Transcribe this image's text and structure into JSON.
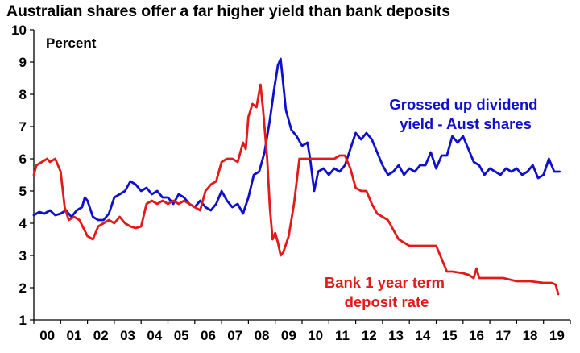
{
  "chart_data": {
    "type": "line",
    "title": "Australian shares offer a far higher yield than bank deposits",
    "ylabel": "Percent",
    "xlabel": "",
    "ylim": [
      1,
      10
    ],
    "xlim": [
      2000,
      2019.6
    ],
    "grid": false,
    "x_tick_labels": [
      "00",
      "01",
      "02",
      "03",
      "04",
      "05",
      "06",
      "07",
      "08",
      "09",
      "10",
      "11",
      "12",
      "13",
      "14",
      "15",
      "16",
      "17",
      "18",
      "19"
    ],
    "y_tick_labels": [
      "1",
      "2",
      "3",
      "4",
      "5",
      "6",
      "7",
      "8",
      "9",
      "10"
    ],
    "series": [
      {
        "name": "Grossed up dividend yield - Aust shares",
        "color": "#1010cc",
        "label_lines": [
          "Grossed up dividend",
          "yield - Aust shares"
        ],
        "points": [
          [
            2000.0,
            4.25
          ],
          [
            2000.2,
            4.35
          ],
          [
            2000.4,
            4.3
          ],
          [
            2000.6,
            4.4
          ],
          [
            2000.8,
            4.25
          ],
          [
            2001.0,
            4.3
          ],
          [
            2001.2,
            4.4
          ],
          [
            2001.4,
            4.2
          ],
          [
            2001.6,
            4.4
          ],
          [
            2001.8,
            4.5
          ],
          [
            2001.9,
            4.8
          ],
          [
            2002.0,
            4.7
          ],
          [
            2002.2,
            4.2
          ],
          [
            2002.4,
            4.1
          ],
          [
            2002.6,
            4.1
          ],
          [
            2002.8,
            4.3
          ],
          [
            2003.0,
            4.8
          ],
          [
            2003.2,
            4.9
          ],
          [
            2003.4,
            5.0
          ],
          [
            2003.6,
            5.3
          ],
          [
            2003.8,
            5.2
          ],
          [
            2004.0,
            5.0
          ],
          [
            2004.2,
            5.1
          ],
          [
            2004.4,
            4.9
          ],
          [
            2004.6,
            5.0
          ],
          [
            2004.8,
            4.8
          ],
          [
            2005.0,
            4.8
          ],
          [
            2005.2,
            4.6
          ],
          [
            2005.4,
            4.9
          ],
          [
            2005.6,
            4.8
          ],
          [
            2005.8,
            4.6
          ],
          [
            2006.0,
            4.5
          ],
          [
            2006.2,
            4.7
          ],
          [
            2006.4,
            4.5
          ],
          [
            2006.6,
            4.4
          ],
          [
            2006.8,
            4.6
          ],
          [
            2007.0,
            5.0
          ],
          [
            2007.2,
            4.7
          ],
          [
            2007.4,
            4.5
          ],
          [
            2007.6,
            4.6
          ],
          [
            2007.8,
            4.3
          ],
          [
            2008.0,
            4.8
          ],
          [
            2008.2,
            5.5
          ],
          [
            2008.4,
            5.6
          ],
          [
            2008.6,
            6.2
          ],
          [
            2008.8,
            7.2
          ],
          [
            2008.95,
            8.1
          ],
          [
            2009.1,
            8.9
          ],
          [
            2009.2,
            9.1
          ],
          [
            2009.3,
            8.3
          ],
          [
            2009.4,
            7.5
          ],
          [
            2009.6,
            6.9
          ],
          [
            2009.8,
            6.7
          ],
          [
            2010.0,
            6.4
          ],
          [
            2010.2,
            6.5
          ],
          [
            2010.3,
            6.0
          ],
          [
            2010.45,
            5.0
          ],
          [
            2010.6,
            5.6
          ],
          [
            2010.8,
            5.7
          ],
          [
            2011.0,
            5.5
          ],
          [
            2011.2,
            5.7
          ],
          [
            2011.4,
            5.6
          ],
          [
            2011.6,
            5.8
          ],
          [
            2011.8,
            6.3
          ],
          [
            2012.0,
            6.8
          ],
          [
            2012.2,
            6.6
          ],
          [
            2012.4,
            6.8
          ],
          [
            2012.6,
            6.6
          ],
          [
            2012.8,
            6.2
          ],
          [
            2013.0,
            5.8
          ],
          [
            2013.2,
            5.5
          ],
          [
            2013.4,
            5.6
          ],
          [
            2013.6,
            5.8
          ],
          [
            2013.8,
            5.5
          ],
          [
            2014.0,
            5.7
          ],
          [
            2014.2,
            5.6
          ],
          [
            2014.4,
            5.8
          ],
          [
            2014.6,
            5.8
          ],
          [
            2014.8,
            6.2
          ],
          [
            2015.0,
            5.7
          ],
          [
            2015.2,
            6.1
          ],
          [
            2015.4,
            6.1
          ],
          [
            2015.6,
            6.7
          ],
          [
            2015.8,
            6.5
          ],
          [
            2016.0,
            6.7
          ],
          [
            2016.2,
            6.3
          ],
          [
            2016.4,
            5.9
          ],
          [
            2016.6,
            5.8
          ],
          [
            2016.8,
            5.5
          ],
          [
            2017.0,
            5.7
          ],
          [
            2017.2,
            5.6
          ],
          [
            2017.4,
            5.5
          ],
          [
            2017.6,
            5.7
          ],
          [
            2017.8,
            5.6
          ],
          [
            2018.0,
            5.7
          ],
          [
            2018.2,
            5.5
          ],
          [
            2018.4,
            5.6
          ],
          [
            2018.6,
            5.8
          ],
          [
            2018.8,
            5.4
          ],
          [
            2019.0,
            5.5
          ],
          [
            2019.2,
            6.0
          ],
          [
            2019.4,
            5.6
          ],
          [
            2019.6,
            5.6
          ]
        ]
      },
      {
        "name": "Bank 1 year term deposit rate",
        "color": "#e21a1a",
        "label_lines": [
          "Bank 1 year term",
          "deposit rate"
        ],
        "points": [
          [
            2000.0,
            5.5
          ],
          [
            2000.1,
            5.8
          ],
          [
            2000.3,
            5.9
          ],
          [
            2000.5,
            6.0
          ],
          [
            2000.6,
            5.9
          ],
          [
            2000.8,
            6.0
          ],
          [
            2001.0,
            5.6
          ],
          [
            2001.15,
            4.5
          ],
          [
            2001.3,
            4.1
          ],
          [
            2001.5,
            4.2
          ],
          [
            2001.7,
            4.1
          ],
          [
            2002.0,
            3.6
          ],
          [
            2002.2,
            3.5
          ],
          [
            2002.4,
            3.9
          ],
          [
            2002.6,
            4.0
          ],
          [
            2002.8,
            4.1
          ],
          [
            2003.0,
            4.0
          ],
          [
            2003.2,
            4.2
          ],
          [
            2003.4,
            4.0
          ],
          [
            2003.6,
            3.9
          ],
          [
            2003.8,
            3.85
          ],
          [
            2004.0,
            3.9
          ],
          [
            2004.2,
            4.6
          ],
          [
            2004.4,
            4.7
          ],
          [
            2004.6,
            4.6
          ],
          [
            2004.8,
            4.7
          ],
          [
            2005.0,
            4.6
          ],
          [
            2005.2,
            4.7
          ],
          [
            2005.4,
            4.6
          ],
          [
            2005.6,
            4.7
          ],
          [
            2005.8,
            4.6
          ],
          [
            2006.0,
            4.5
          ],
          [
            2006.2,
            4.4
          ],
          [
            2006.4,
            5.0
          ],
          [
            2006.6,
            5.2
          ],
          [
            2006.8,
            5.3
          ],
          [
            2007.0,
            5.9
          ],
          [
            2007.2,
            6.0
          ],
          [
            2007.4,
            6.0
          ],
          [
            2007.6,
            5.9
          ],
          [
            2007.8,
            6.5
          ],
          [
            2007.9,
            6.3
          ],
          [
            2008.0,
            7.3
          ],
          [
            2008.15,
            7.7
          ],
          [
            2008.3,
            7.6
          ],
          [
            2008.45,
            8.3
          ],
          [
            2008.55,
            7.5
          ],
          [
            2008.7,
            6.0
          ],
          [
            2008.8,
            4.5
          ],
          [
            2008.9,
            3.5
          ],
          [
            2009.0,
            3.7
          ],
          [
            2009.1,
            3.4
          ],
          [
            2009.2,
            3.0
          ],
          [
            2009.3,
            3.1
          ],
          [
            2009.5,
            3.6
          ],
          [
            2009.7,
            4.6
          ],
          [
            2009.9,
            6.0
          ],
          [
            2010.0,
            6.0
          ],
          [
            2010.5,
            6.0
          ],
          [
            2011.0,
            6.0
          ],
          [
            2011.2,
            6.0
          ],
          [
            2011.4,
            6.1
          ],
          [
            2011.6,
            6.1
          ],
          [
            2011.8,
            5.7
          ],
          [
            2012.0,
            5.1
          ],
          [
            2012.2,
            5.0
          ],
          [
            2012.4,
            5.0
          ],
          [
            2012.6,
            4.6
          ],
          [
            2012.8,
            4.3
          ],
          [
            2013.0,
            4.2
          ],
          [
            2013.2,
            4.1
          ],
          [
            2013.4,
            3.8
          ],
          [
            2013.6,
            3.5
          ],
          [
            2013.8,
            3.4
          ],
          [
            2014.0,
            3.3
          ],
          [
            2014.5,
            3.3
          ],
          [
            2015.0,
            3.3
          ],
          [
            2015.2,
            2.9
          ],
          [
            2015.4,
            2.5
          ],
          [
            2015.6,
            2.5
          ],
          [
            2016.0,
            2.45
          ],
          [
            2016.2,
            2.4
          ],
          [
            2016.4,
            2.3
          ],
          [
            2016.5,
            2.6
          ],
          [
            2016.6,
            2.3
          ],
          [
            2016.8,
            2.3
          ],
          [
            2017.0,
            2.3
          ],
          [
            2017.5,
            2.3
          ],
          [
            2018.0,
            2.2
          ],
          [
            2018.5,
            2.2
          ],
          [
            2019.0,
            2.15
          ],
          [
            2019.3,
            2.15
          ],
          [
            2019.45,
            2.1
          ],
          [
            2019.55,
            1.8
          ]
        ]
      }
    ]
  }
}
